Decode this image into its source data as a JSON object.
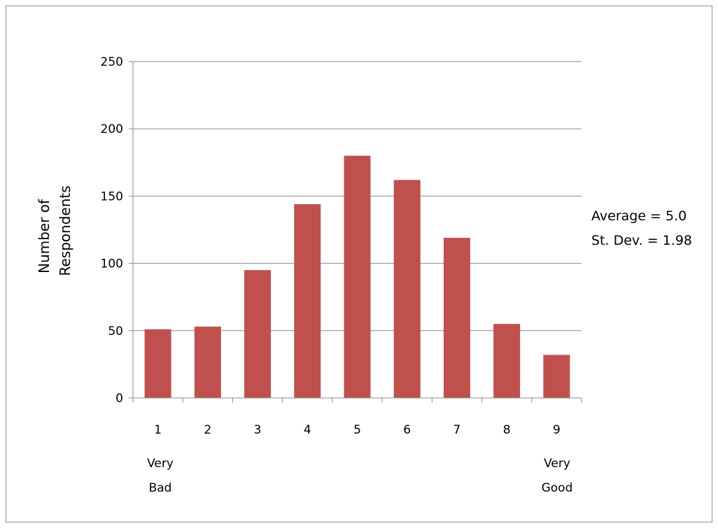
{
  "chart_data": {
    "type": "bar",
    "categories": [
      "1",
      "2",
      "3",
      "4",
      "5",
      "6",
      "7",
      "8",
      "9"
    ],
    "values": [
      51,
      53,
      95,
      144,
      180,
      162,
      119,
      55,
      32
    ],
    "ylabel_lines": [
      "Number of",
      "Respondents"
    ],
    "xlabel": "",
    "ylim": [
      0,
      250
    ],
    "yticks": [
      0,
      50,
      100,
      150,
      200,
      250
    ],
    "grid": true,
    "legend": "none",
    "bar_color": "#c0504d",
    "end_labels": {
      "left": [
        "Very",
        "Bad"
      ],
      "right": [
        "Very",
        "Good"
      ]
    },
    "annotations": [
      "Average = 5.0",
      "St. Dev. = 1.98"
    ]
  }
}
